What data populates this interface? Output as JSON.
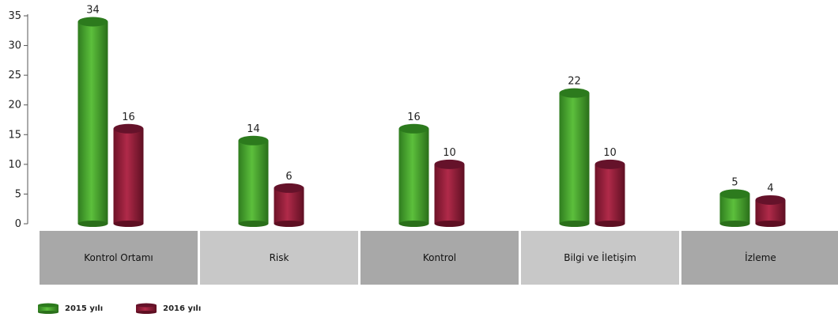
{
  "chart_data": {
    "type": "bar",
    "categories": [
      "Kontrol Ortamı",
      "Risk",
      "Kontrol",
      "Bilgi ve İletişim",
      "İzleme"
    ],
    "series": [
      {
        "name": "2015 yılı",
        "values": [
          34,
          14,
          16,
          22,
          5
        ],
        "color": "#3f9b2c"
      },
      {
        "name": "2016 yılı",
        "values": [
          16,
          6,
          10,
          10,
          4
        ],
        "color": "#8c1c36"
      }
    ],
    "ylim": [
      0,
      35
    ],
    "yticks": [
      "0",
      "5",
      "10",
      "15",
      "20",
      "25",
      "30",
      "35"
    ],
    "legend_position": "bottom-left",
    "category_band_colors": [
      "#a8a8a8",
      "#c8c8c8",
      "#a8a8a8",
      "#c8c8c8",
      "#a8a8a8"
    ]
  }
}
